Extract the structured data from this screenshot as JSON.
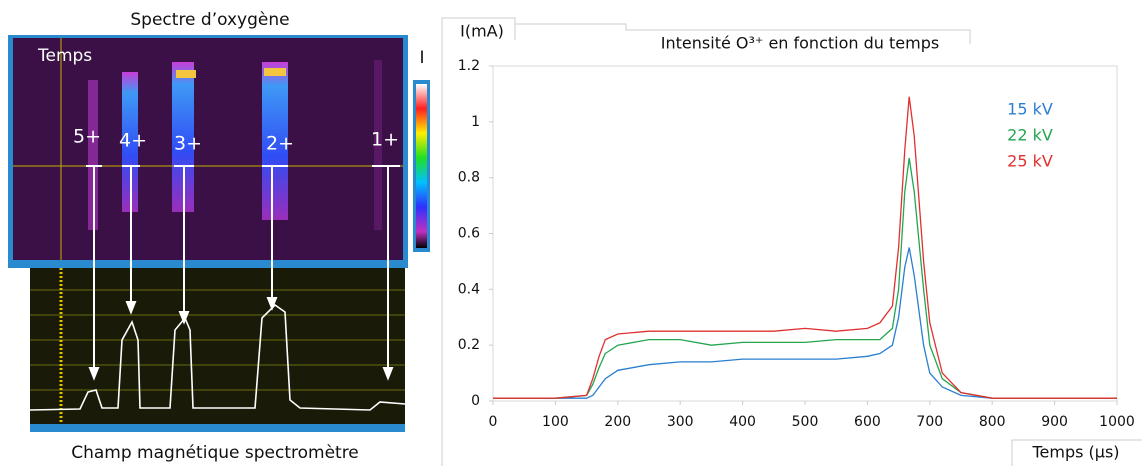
{
  "left_panel": {
    "title": "Spectre d’oxygène",
    "time_label": "Temps",
    "intensity_label": "I",
    "ion_labels": [
      "5+",
      "4+",
      "3+",
      "2+",
      "1+"
    ],
    "caption": "Champ magnétique spectromètre"
  },
  "chart_data": {
    "type": "line",
    "title": "Intensité O³⁺ en fonction du temps",
    "y_label": "I(mA)",
    "x_label": "Temps (µs)",
    "legend": "upper right",
    "x": [
      0,
      100,
      150,
      160,
      170,
      180,
      200,
      250,
      300,
      350,
      400,
      450,
      500,
      550,
      600,
      620,
      640,
      650,
      660,
      667,
      675,
      690,
      700,
      720,
      750,
      800,
      900,
      1000
    ],
    "series": [
      {
        "name": "15 kV",
        "color": "#2a7fd0",
        "values": [
          0.01,
          0.01,
          0.01,
          0.02,
          0.05,
          0.08,
          0.11,
          0.13,
          0.14,
          0.14,
          0.15,
          0.15,
          0.15,
          0.15,
          0.16,
          0.17,
          0.2,
          0.3,
          0.48,
          0.55,
          0.45,
          0.2,
          0.1,
          0.05,
          0.02,
          0.01,
          0.01,
          0.01
        ]
      },
      {
        "name": "22 kV",
        "color": "#22a650",
        "values": [
          0.01,
          0.01,
          0.02,
          0.06,
          0.12,
          0.17,
          0.2,
          0.22,
          0.22,
          0.2,
          0.21,
          0.21,
          0.21,
          0.22,
          0.22,
          0.22,
          0.26,
          0.4,
          0.75,
          0.87,
          0.75,
          0.4,
          0.2,
          0.08,
          0.03,
          0.01,
          0.01,
          0.01
        ]
      },
      {
        "name": "25 kV",
        "color": "#e03030",
        "values": [
          0.01,
          0.01,
          0.02,
          0.08,
          0.16,
          0.22,
          0.24,
          0.25,
          0.25,
          0.25,
          0.25,
          0.25,
          0.26,
          0.25,
          0.26,
          0.28,
          0.34,
          0.55,
          0.9,
          1.09,
          0.95,
          0.5,
          0.28,
          0.1,
          0.03,
          0.01,
          0.01,
          0.01
        ]
      }
    ],
    "xlim": [
      0,
      1000
    ],
    "xticks": [
      0,
      100,
      200,
      300,
      400,
      500,
      600,
      700,
      800,
      900,
      1000
    ],
    "ylim": [
      0,
      1.2
    ],
    "yticks": [
      0,
      0.2,
      0.4,
      0.6,
      0.8,
      1,
      1.2
    ],
    "grid": false
  }
}
